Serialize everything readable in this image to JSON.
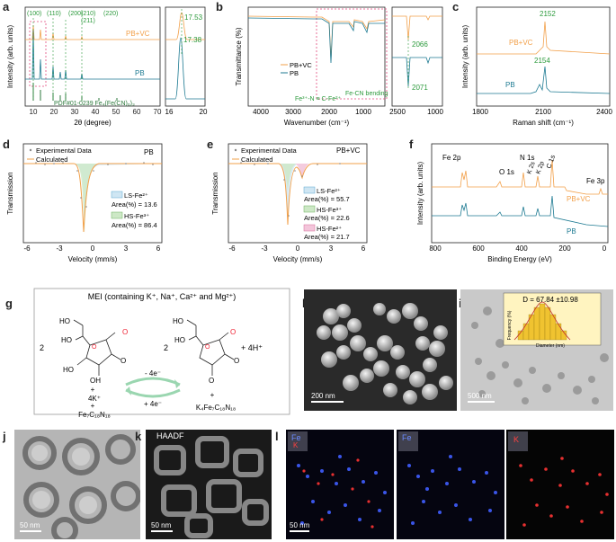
{
  "panels": {
    "a": {
      "letter": "a",
      "ylabel": "Intensity (arb. units)",
      "xlabel": "2θ (degree)",
      "peaks": [
        "(100)",
        "(110)",
        "(200)",
        "(210)",
        "(211)",
        "(220)"
      ],
      "label_pbvc": "PB+VC",
      "label_pb": "PB",
      "ref": "PDF#01-0239 Fe₄(Fe(CN)₆)₃",
      "inset_top": "17.53",
      "inset_bot": "17.38",
      "xticks": [
        "10",
        "20",
        "30",
        "40",
        "50",
        "60",
        "70"
      ],
      "inset_xticks": [
        "16",
        "20"
      ]
    },
    "b": {
      "letter": "b",
      "ylabel": "Transmittance (%)",
      "xlabel": "Wavenumber (cm⁻¹)",
      "legend": [
        "PB+VC",
        "PB"
      ],
      "ann1": "Fe³⁺-N ≡ C-Fe²⁺",
      "ann2": "Fe-CN bending",
      "inset_top": "2066",
      "inset_bot": "2071",
      "xticks": [
        "4000",
        "3000",
        "2000",
        "1000"
      ],
      "inset_xticks": [
        "2500",
        "1000"
      ]
    },
    "c": {
      "letter": "c",
      "ylabel": "Intensity (arb. units)",
      "xlabel": "Raman shift (cm⁻¹)",
      "label_pbvc": "PB+VC",
      "label_pb": "PB",
      "peak_top": "2152",
      "peak_bot": "2154",
      "xticks": [
        "1800",
        "2100",
        "2400"
      ]
    },
    "d": {
      "letter": "d",
      "ylabel": "Transmission",
      "xlabel": "Velocity (mm/s)",
      "tag": "PB",
      "legend": [
        "Experimental Data",
        "Calculated"
      ],
      "comp1": "LS-Fe²⁺",
      "area1": "Area(%) = 13.6",
      "comp2": "HS-Fe³⁺",
      "area2": "Area(%) = 86.4",
      "xticks": [
        "-6",
        "-3",
        "0",
        "3",
        "6"
      ]
    },
    "e": {
      "letter": "e",
      "ylabel": "Transmission",
      "xlabel": "Velocity (mm/s)",
      "tag": "PB+VC",
      "legend": [
        "Experimental Data",
        "Calculated"
      ],
      "comp1": "LS-Fe²⁺",
      "area1": "Area(%) = 55.7",
      "comp2": "HS-Fe³⁺",
      "area2": "Area(%) = 22.6",
      "comp3": "HS-Fe²⁺",
      "area3": "Area(%) = 21.7",
      "xticks": [
        "-6",
        "-3",
        "0",
        "3",
        "6"
      ]
    },
    "f": {
      "letter": "f",
      "ylabel": "Intensity (arb. units)",
      "xlabel": "Binding Energy (eV)",
      "peaks": [
        "Fe 2p",
        "O 1s",
        "N 1s",
        "K 2s",
        "K 2p",
        "C 1s",
        "Fe 3p"
      ],
      "label_pbvc": "PB+VC",
      "label_pb": "PB",
      "xticks": [
        "800",
        "600",
        "400",
        "200",
        "0"
      ]
    },
    "g": {
      "letter": "g",
      "title": "MEI (containing K⁺, Na⁺, Ca²⁺ and Mg²⁺)",
      "coef_left": "2",
      "coef_right": "2",
      "plus_h": "+ 4H⁺",
      "k_ions": "4K⁺",
      "reactant_pb": "Fe₇C₁₈N₁₈",
      "product_pb": "K₄Fe₇C₁₈N₁₈",
      "minus_e": "- 4e⁻",
      "plus_e": "+ 4e⁻",
      "plus": "+"
    },
    "h": {
      "letter": "h",
      "scale": "200 nm"
    },
    "i": {
      "letter": "i",
      "scale": "500 nm",
      "inset_d": "D = 67.84 ±10.98",
      "inset_ylabel": "Frequency (%)",
      "inset_xlabel": "Diameter (nm)"
    },
    "j": {
      "letter": "j",
      "scale": "50 nm"
    },
    "k": {
      "letter": "k",
      "scale": "50 nm",
      "tag": "HAADF"
    },
    "l": {
      "letter": "l",
      "scale": "50 nm",
      "tag1": "Fe",
      "tag1b": "K",
      "tag2": "Fe",
      "tag3": "K"
    }
  }
}
